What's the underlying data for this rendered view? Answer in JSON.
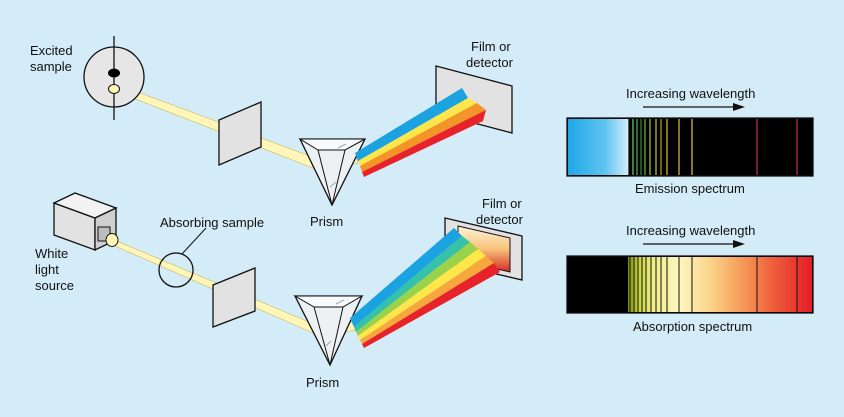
{
  "top_setup": {
    "source_label_line1": "Excited",
    "source_label_line2": "sample",
    "detector_label_line1": "Film or",
    "detector_label_line2": "detector",
    "prism_label": "Prism"
  },
  "bottom_setup": {
    "source_label_line1": "White",
    "source_label_line2": "light",
    "source_label_line3": "source",
    "sample_label": "Absorbing sample",
    "detector_label_line1": "Film or",
    "detector_label_line2": "detector",
    "prism_label": "Prism"
  },
  "emission_panel": {
    "heading": "Increasing wavelength",
    "caption": "Emission spectrum"
  },
  "absorption_panel": {
    "heading": "Increasing wavelength",
    "caption": "Absorption spectrum"
  },
  "colors": {
    "background": "#d4ecf8",
    "beam": "#fff6b8",
    "spectrum_red": "#e8222a",
    "spectrum_blue": "#1aa3e0",
    "spectrum_black": "#000000"
  }
}
